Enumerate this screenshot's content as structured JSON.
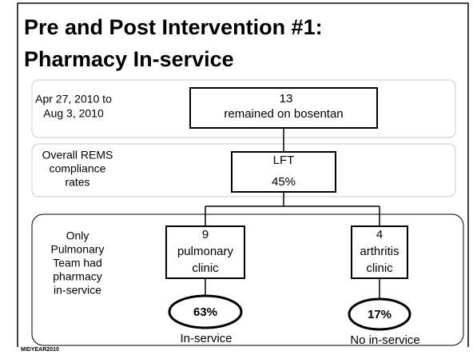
{
  "title": [
    "Pre and Post Intervention #1:",
    "Pharmacy In-service"
  ],
  "rows": [
    {
      "label": [
        "Apr 27, 2010 to",
        "Aug 3, 2010"
      ],
      "box": [
        "13",
        "remained on bosentan"
      ]
    },
    {
      "label": [
        "Overall REMS",
        "compliance",
        "rates"
      ],
      "box": [
        "LFT",
        "45%"
      ]
    },
    {
      "label": [
        "Only",
        "Pulmonary",
        "Team had",
        "pharmacy",
        "in-service"
      ]
    }
  ],
  "branches": [
    {
      "box": [
        "9",
        "pulmonary",
        "clinic"
      ],
      "rate": "63%",
      "caption": "In-service"
    },
    {
      "box": [
        "4",
        "arthritis",
        "clinic"
      ],
      "rate": "17%",
      "caption": "No in-service"
    }
  ],
  "footer": "MIDYEAR2010"
}
